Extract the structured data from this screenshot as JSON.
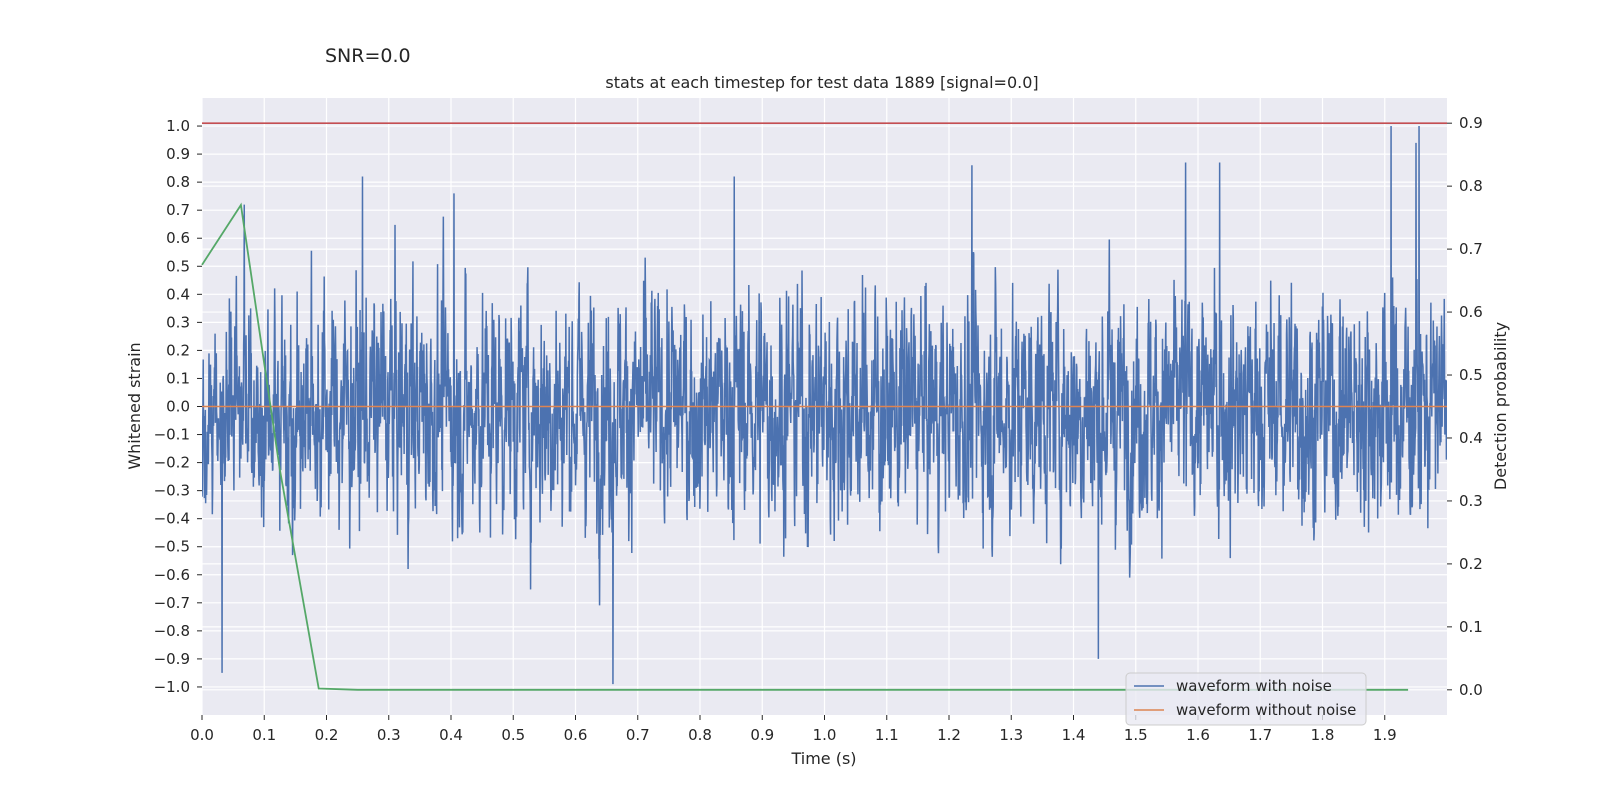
{
  "suptitle": "SNR=0.0",
  "chart_data": {
    "type": "line",
    "title": "stats at each timestep for test data 1889 [signal=0.0]",
    "xlabel": "Time (s)",
    "ylabel": "Whitened strain",
    "y2label": "Detection probability",
    "xlim": [
      0.0,
      2.0
    ],
    "ylim": [
      -1.1,
      1.1
    ],
    "y2lim": [
      -0.04,
      0.94
    ],
    "xticks": [
      "0.0",
      "0.1",
      "0.2",
      "0.3",
      "0.4",
      "0.5",
      "0.6",
      "0.7",
      "0.8",
      "0.9",
      "1.0",
      "1.1",
      "1.2",
      "1.3",
      "1.4",
      "1.5",
      "1.6",
      "1.7",
      "1.8",
      "1.9"
    ],
    "yticks": [
      "1.0",
      "0.9",
      "0.8",
      "0.7",
      "0.6",
      "0.5",
      "0.4",
      "0.3",
      "0.2",
      "0.1",
      "0.0",
      "−0.1",
      "−0.2",
      "−0.3",
      "−0.4",
      "−0.5",
      "−0.6",
      "−0.7",
      "−0.8",
      "−0.9",
      "−1.0"
    ],
    "y2ticks": [
      "0.9",
      "0.8",
      "0.7",
      "0.6",
      "0.5",
      "0.4",
      "0.3",
      "0.2",
      "0.1",
      "0.0"
    ],
    "grid": true,
    "legend_position": "lower-right",
    "series": [
      {
        "name": "waveform with noise",
        "color": "#4c72b0",
        "axis": "left",
        "sample_rate": 2048,
        "value_range": [
          -1.0,
          1.0
        ],
        "seed": 1889,
        "peaks": [
          [
            0.032,
            -0.95
          ],
          [
            0.068,
            0.72
          ],
          [
            0.258,
            0.82
          ],
          [
            0.405,
            0.76
          ],
          [
            0.66,
            -0.99
          ],
          [
            0.855,
            0.82
          ],
          [
            1.237,
            0.86
          ],
          [
            1.44,
            -0.9
          ],
          [
            1.58,
            0.87
          ],
          [
            1.635,
            0.87
          ],
          [
            1.91,
            1.0
          ],
          [
            1.955,
            1.0
          ],
          [
            1.95,
            0.94
          ]
        ]
      },
      {
        "name": "waveform without noise",
        "color": "#dd8452",
        "axis": "left",
        "x": [
          0.0,
          2.0
        ],
        "y": [
          0.0,
          0.0
        ]
      },
      {
        "name": "",
        "color": "#55a868",
        "axis": "right",
        "x": [
          0.0,
          0.0625,
          0.125,
          0.1875,
          0.25,
          0.3125,
          1.9375
        ],
        "y": [
          0.675,
          0.77,
          0.35,
          0.002,
          0.0,
          0.0,
          0.0
        ]
      },
      {
        "name": "",
        "color": "#c44e52",
        "axis": "right",
        "x": [
          0.0,
          2.0
        ],
        "y": [
          0.9,
          0.9
        ]
      }
    ]
  }
}
